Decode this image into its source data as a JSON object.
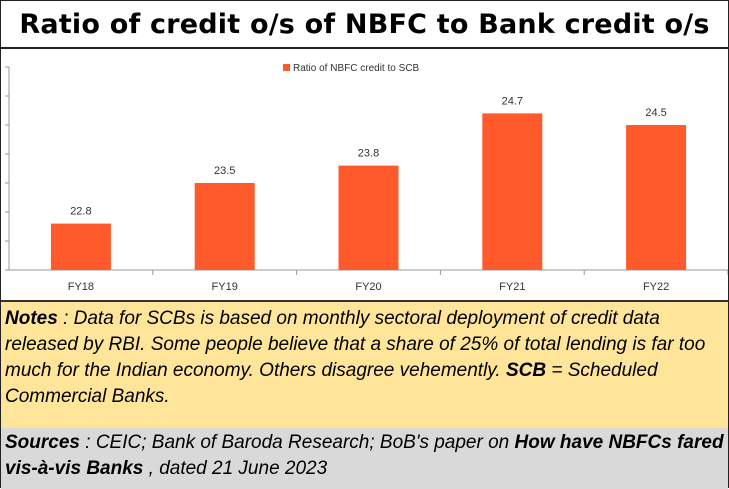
{
  "title": "Ratio of credit o/s of NBFC to Bank credit o/s",
  "chart_data": {
    "type": "bar",
    "categories": [
      "FY18",
      "FY19",
      "FY20",
      "FY21",
      "FY22"
    ],
    "series": [
      {
        "name": "Ratio of NBFC credit to SCB",
        "values": [
          22.8,
          23.5,
          23.8,
          24.7,
          24.5
        ],
        "color": "#ff5a2c"
      }
    ],
    "data_labels": [
      "22.8",
      "23.5",
      "23.8",
      "24.7",
      "24.5"
    ],
    "ylim": [
      22.0,
      25.5
    ],
    "y_axis_labels_visible": false,
    "grid": false,
    "legend_position": "top-center"
  },
  "notes": {
    "label": "Notes",
    "sep": " :  ",
    "text1": "Data for SCBs is based on monthly sectoral deployment of credit data released by RBI. Some people believe that a share of 25% of total lending is far too much for the Indian economy.  Others disagree vehemently.  ",
    "abbr": "SCB",
    "text2": "  = Scheduled Commercial Banks."
  },
  "sources": {
    "label": "Sources",
    "text1": " : CEIC; Bank of Baroda Research; BoB's paper on  ",
    "paper_title": "How have NBFCs fared vis-à-vis Banks",
    "text2": " , dated 21 June 2023"
  }
}
